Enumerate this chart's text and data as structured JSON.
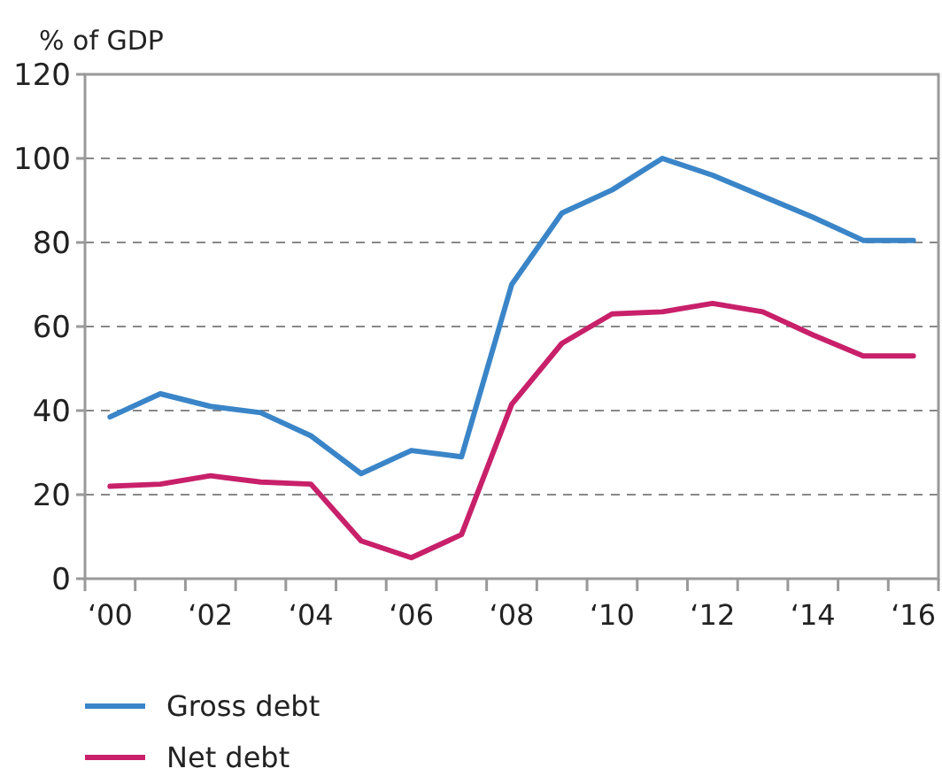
{
  "chart_data": {
    "type": "line",
    "ylabel": "% of GDP",
    "categories": [
      "‘00",
      null,
      "‘02",
      null,
      "‘04",
      null,
      "‘06",
      null,
      "‘08",
      null,
      "‘10",
      null,
      "‘12",
      null,
      "‘14",
      null,
      "‘16"
    ],
    "series": [
      {
        "name": "Gross debt",
        "color": "#3a85c8",
        "values": [
          38.5,
          44,
          41,
          39.5,
          34,
          25,
          30.5,
          29,
          70,
          87,
          92.5,
          100,
          96,
          91,
          86,
          80.5,
          80.5
        ]
      },
      {
        "name": "Net debt",
        "color": "#c8206a",
        "values": [
          22,
          22.5,
          24.5,
          23,
          22.5,
          9,
          5,
          10.5,
          41.5,
          56,
          63,
          63.5,
          65.5,
          63.5,
          58,
          53,
          53
        ]
      }
    ],
    "ylim": [
      0,
      120
    ],
    "yticks": [
      0,
      20,
      40,
      60,
      80,
      100,
      120
    ],
    "grid": "y",
    "legend": "bottom",
    "line_style": "solid"
  }
}
